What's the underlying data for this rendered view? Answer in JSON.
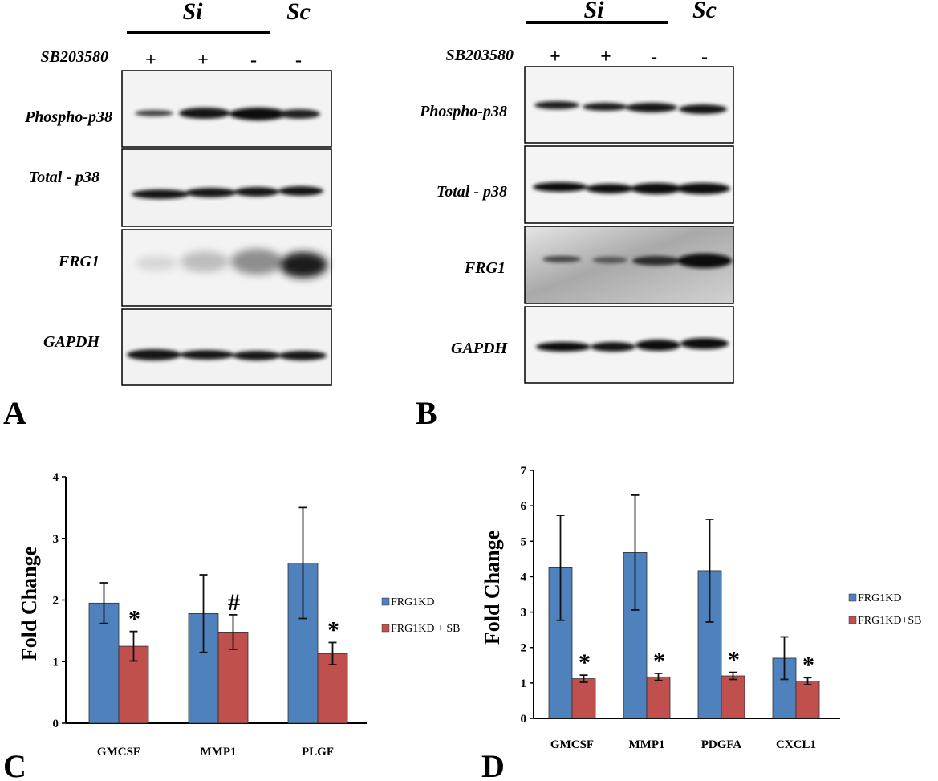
{
  "blots": [
    {
      "panel": "A",
      "group_label": "Si",
      "control_label": "Sc",
      "treatment_label": "SB203580",
      "signs": [
        "+",
        "+",
        "-",
        "-"
      ],
      "rows": [
        "Phospho-p38",
        "Total - p38",
        "FRG1",
        "GAPDH"
      ]
    },
    {
      "panel": "B",
      "group_label": "Si",
      "control_label": "Sc",
      "treatment_label": "SB203580",
      "signs": [
        "+",
        "+",
        "-",
        "-"
      ],
      "rows": [
        "Phospho-p38",
        "Total - p38",
        "FRG1",
        "GAPDH"
      ]
    }
  ],
  "chart_data": [
    {
      "panel": "C",
      "type": "bar",
      "categories": [
        "GMCSF",
        "MMP1",
        "PLGF"
      ],
      "series": [
        {
          "name": "FRG1KD",
          "color": "#4f81bd",
          "values": [
            1.95,
            1.78,
            2.6
          ],
          "errors": [
            0.33,
            0.63,
            0.9
          ]
        },
        {
          "name": "FRG1KD + SB",
          "color": "#c0504d",
          "values": [
            1.25,
            1.48,
            1.13
          ],
          "errors": [
            0.24,
            0.28,
            0.18
          ]
        }
      ],
      "annotations": [
        "*",
        "#",
        "*"
      ],
      "ylabel": "Fold Change",
      "ylim": [
        0,
        4
      ],
      "yticks": [
        "0",
        "1",
        "2",
        "3",
        "4"
      ],
      "grid": false,
      "legend": "right"
    },
    {
      "panel": "D",
      "type": "bar",
      "categories": [
        "GMCSF",
        "MMP1",
        "PDGFA",
        "CXCL1"
      ],
      "series": [
        {
          "name": "FRG1KD",
          "color": "#4f81bd",
          "values": [
            4.25,
            4.68,
            4.17,
            1.7
          ],
          "errors": [
            1.48,
            1.62,
            1.45,
            0.6
          ]
        },
        {
          "name": "FRG1KD+SB",
          "color": "#c0504d",
          "values": [
            1.12,
            1.17,
            1.2,
            1.05
          ],
          "errors": [
            0.1,
            0.1,
            0.1,
            0.1
          ]
        }
      ],
      "annotations": [
        "*",
        "*",
        "*",
        "*"
      ],
      "ylabel": "Fold Change",
      "ylim": [
        0,
        7
      ],
      "yticks": [
        "0",
        "1",
        "2",
        "3",
        "4",
        "5",
        "6",
        "7"
      ],
      "grid": false,
      "legend": "right"
    }
  ],
  "colors": {
    "blue": "#4f81bd",
    "red": "#c0504d"
  }
}
